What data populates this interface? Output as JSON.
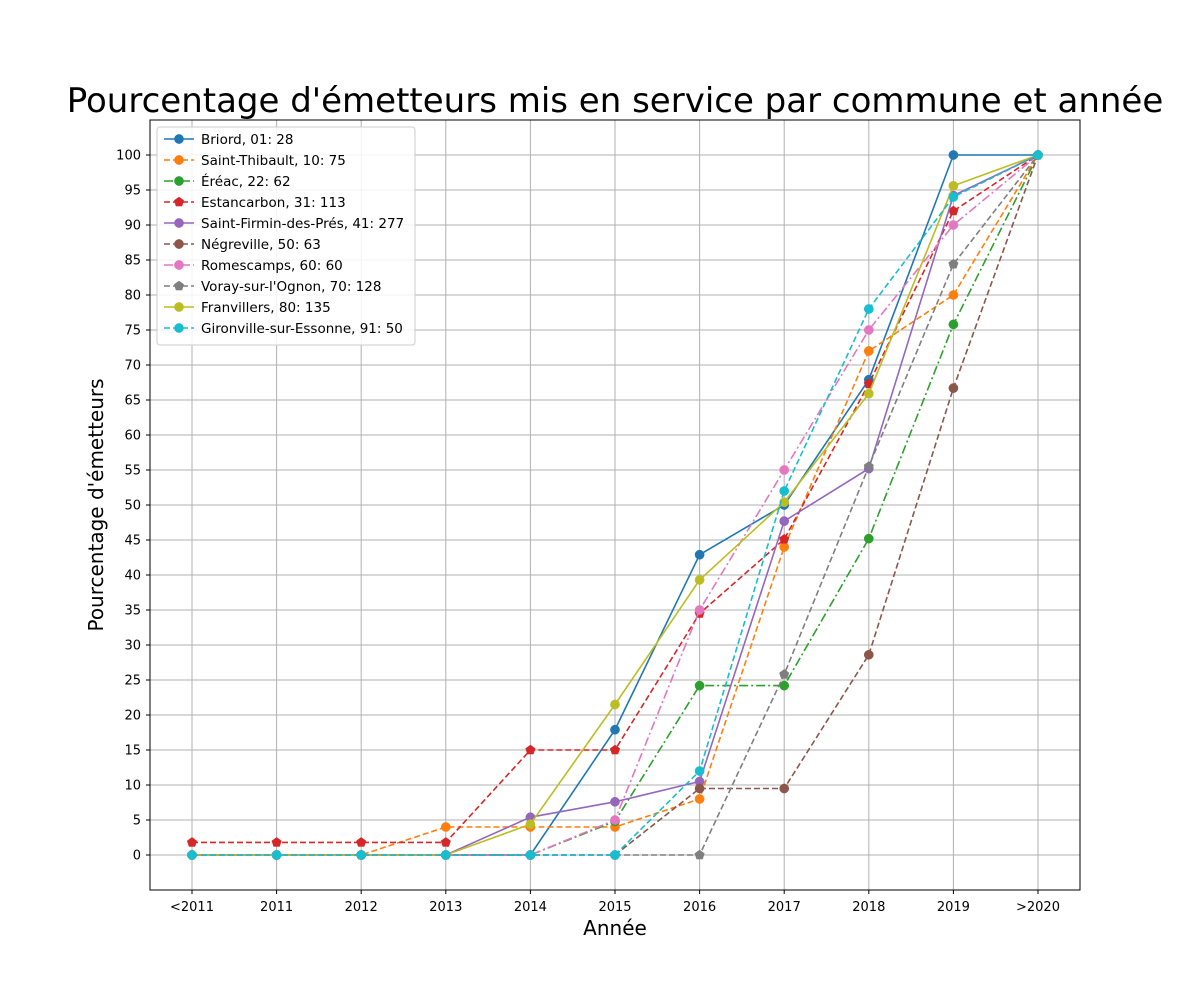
{
  "chart_data": {
    "type": "line",
    "title": "Pourcentage d'émetteurs mis en service par commune et année",
    "xlabel": "Année",
    "ylabel": "Pourcentage d'émetteurs",
    "categories": [
      "<2011",
      "2011",
      "2012",
      "2013",
      "2014",
      "2015",
      "2016",
      "2017",
      "2018",
      "2019",
      ">2020"
    ],
    "yticks": [
      0,
      5,
      10,
      15,
      20,
      25,
      30,
      35,
      40,
      45,
      50,
      55,
      60,
      65,
      70,
      75,
      80,
      85,
      90,
      95,
      100
    ],
    "ylim": [
      -5,
      105
    ],
    "grid": true,
    "legend_position": "upper-left",
    "series": [
      {
        "name": "Briord, 01: 28",
        "color": "#1f77b4",
        "dash": "solid",
        "marker": "circle",
        "values": [
          0,
          0,
          0,
          0,
          0,
          17.9,
          42.9,
          50.0,
          67.9,
          100,
          100
        ]
      },
      {
        "name": "Saint-Thibault, 10: 75",
        "color": "#ff7f0e",
        "dash": "dashed",
        "marker": "circle",
        "values": [
          0,
          0,
          0,
          4.0,
          4.0,
          4.0,
          8.0,
          44.0,
          72.0,
          80.0,
          100
        ]
      },
      {
        "name": "Éréac, 22: 62",
        "color": "#2ca02c",
        "dash": "dashdot",
        "marker": "circle",
        "values": [
          0,
          0,
          0,
          0,
          0,
          4.8,
          24.2,
          24.2,
          45.2,
          75.8,
          100
        ]
      },
      {
        "name": "Estancarbon, 31: 113",
        "color": "#d62728",
        "dash": "dashed",
        "marker": "pentagon",
        "values": [
          1.8,
          1.8,
          1.8,
          1.8,
          15.0,
          15.0,
          34.5,
          45.1,
          67.3,
          92.0,
          100
        ]
      },
      {
        "name": "Saint-Firmin-des-Prés, 41: 277",
        "color": "#9467bd",
        "dash": "solid",
        "marker": "circle",
        "values": [
          0,
          0,
          0,
          0,
          5.4,
          7.6,
          10.5,
          47.7,
          55.2,
          94.2,
          100
        ]
      },
      {
        "name": "Négreville, 50: 63",
        "color": "#8c564b",
        "dash": "dashed",
        "marker": "circle",
        "values": [
          0,
          0,
          0,
          0,
          0,
          0,
          9.5,
          9.5,
          28.6,
          66.7,
          100
        ]
      },
      {
        "name": "Romescamps, 60: 60",
        "color": "#e377c2",
        "dash": "dashdot",
        "marker": "circle",
        "values": [
          0,
          0,
          0,
          0,
          0,
          5.0,
          35.0,
          55.0,
          75.0,
          90.0,
          100
        ]
      },
      {
        "name": "Voray-sur-l'Ognon, 70: 128",
        "color": "#7f7f7f",
        "dash": "dashed",
        "marker": "pentagon",
        "values": [
          0,
          0,
          0,
          0,
          0,
          0,
          0,
          25.8,
          55.5,
          84.4,
          100
        ]
      },
      {
        "name": "Franvillers, 80: 135",
        "color": "#bcbd22",
        "dash": "solid",
        "marker": "circle",
        "values": [
          0,
          0,
          0,
          0,
          4.4,
          21.5,
          39.3,
          50.4,
          65.9,
          95.6,
          100
        ]
      },
      {
        "name": "Gironville-sur-Essonne, 91: 50",
        "color": "#17becf",
        "dash": "dashed",
        "marker": "circle",
        "values": [
          0,
          0,
          0,
          0,
          0,
          0,
          12.0,
          52.0,
          78.0,
          94.0,
          100
        ]
      }
    ]
  }
}
